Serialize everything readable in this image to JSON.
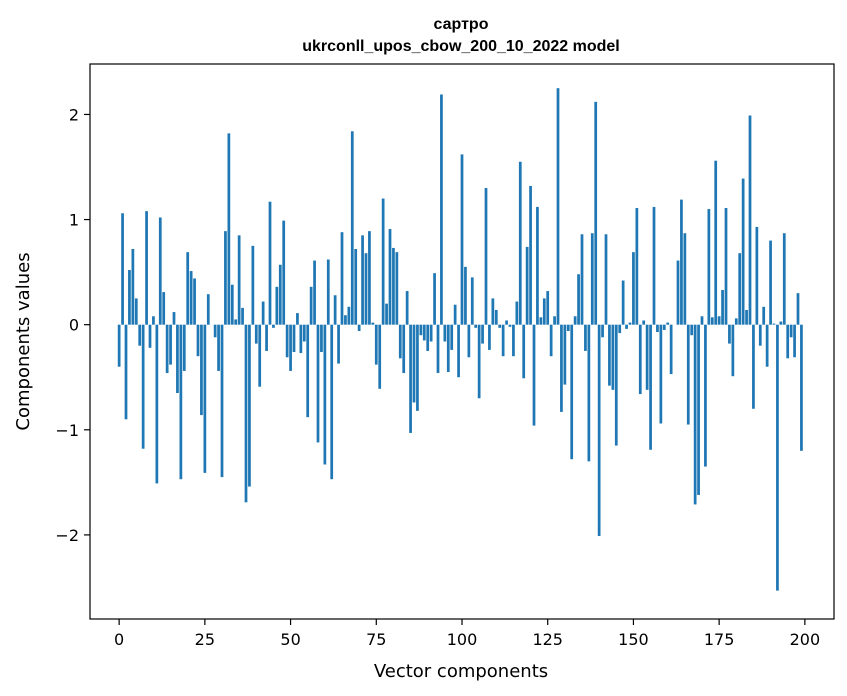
{
  "chart_data": {
    "type": "bar",
    "title": "сартро",
    "subtitle": "ukrconll_upos_cbow_200_10_2022 model",
    "xlabel": "Vector components",
    "ylabel": "Components values",
    "xlim": [
      -8.5,
      208.5
    ],
    "ylim": [
      -2.8,
      2.48
    ],
    "x_ticks": [
      0,
      25,
      50,
      75,
      100,
      125,
      150,
      175,
      200
    ],
    "y_ticks": [
      -2,
      -1,
      0,
      1,
      2
    ],
    "y_tick_labels": [
      "−2",
      "−1",
      "0",
      "1",
      "2"
    ],
    "bar_color": "#1f77b4",
    "grid": false,
    "legend": "none",
    "values": [
      -0.4,
      1.06,
      -0.9,
      0.52,
      0.72,
      0.25,
      -0.2,
      -1.18,
      1.08,
      -0.22,
      0.08,
      -1.51,
      1.02,
      0.31,
      -0.46,
      -0.38,
      0.12,
      -0.65,
      -1.47,
      -0.44,
      0.69,
      0.51,
      0.44,
      -0.3,
      -0.86,
      -1.41,
      0.29,
      0.0,
      -0.12,
      -0.44,
      -1.45,
      0.89,
      1.82,
      0.38,
      0.05,
      0.85,
      0.16,
      -1.69,
      -1.54,
      0.75,
      -0.18,
      -0.59,
      0.22,
      -0.25,
      1.17,
      -0.03,
      0.36,
      0.57,
      0.99,
      -0.31,
      -0.44,
      -0.26,
      0.11,
      -0.27,
      -0.16,
      -0.88,
      0.36,
      0.61,
      -1.12,
      -0.26,
      -1.33,
      0.62,
      -1.47,
      0.28,
      -0.37,
      0.88,
      0.09,
      0.17,
      1.84,
      0.72,
      -0.06,
      0.85,
      0.68,
      0.89,
      0.02,
      -0.38,
      -0.61,
      1.2,
      0.2,
      0.91,
      0.73,
      0.69,
      -0.32,
      -0.46,
      0.32,
      -1.03,
      -0.74,
      -0.82,
      -0.1,
      -0.15,
      -0.25,
      -0.16,
      0.49,
      -0.46,
      2.19,
      -0.16,
      -0.45,
      -0.24,
      0.19,
      -0.5,
      1.62,
      0.55,
      -0.31,
      0.45,
      -0.03,
      -0.7,
      -0.18,
      1.3,
      -0.24,
      0.25,
      0.14,
      -0.03,
      -0.3,
      0.04,
      -0.02,
      -0.3,
      0.22,
      1.55,
      -0.51,
      0.74,
      1.32,
      -0.96,
      1.12,
      0.07,
      0.25,
      0.32,
      -0.3,
      0.08,
      2.25,
      -0.83,
      -0.57,
      -0.06,
      -1.28,
      0.08,
      0.48,
      0.86,
      -0.25,
      -1.3,
      0.87,
      2.12,
      -2.01,
      -0.12,
      0.86,
      -0.58,
      -0.62,
      -1.15,
      -0.08,
      0.42,
      -0.04,
      0.02,
      0.69,
      1.11,
      -0.66,
      0.04,
      -0.62,
      -1.19,
      1.12,
      -0.07,
      -0.94,
      -0.05,
      0.02,
      -0.47,
      0.0,
      0.61,
      1.19,
      0.87,
      -0.95,
      -0.1,
      -1.71,
      -1.62,
      0.08,
      -1.35,
      1.1,
      0.07,
      1.56,
      0.08,
      0.33,
      1.11,
      -0.18,
      -0.49,
      0.06,
      0.68,
      1.39,
      0.14,
      1.99,
      -0.8,
      0.93,
      -0.2,
      0.17,
      -0.4,
      0.8,
      0.01,
      -2.53,
      0.03,
      0.87,
      -0.32,
      -0.12,
      -0.31,
      0.3,
      -1.2
    ]
  }
}
